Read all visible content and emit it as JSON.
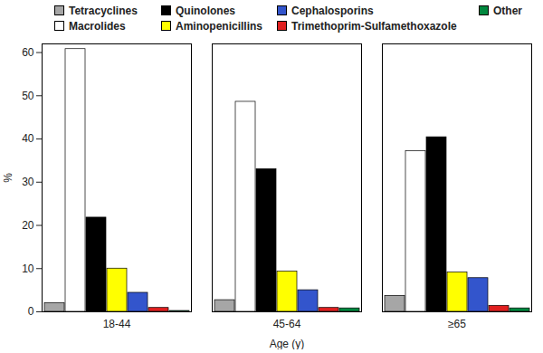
{
  "chart_data": {
    "type": "bar",
    "x_label": "Age (y)",
    "y_label": "%",
    "categories": [
      "18-44",
      "45-64",
      "≥65"
    ],
    "series": [
      {
        "name": "Tetracyclines",
        "color": "#a6a6a6",
        "values": [
          2.0,
          2.7,
          3.7
        ]
      },
      {
        "name": "Macrolides",
        "color": "#ffffff",
        "values": [
          60.8,
          48.6,
          37.2
        ]
      },
      {
        "name": "Quinolones",
        "color": "#000000",
        "values": [
          21.8,
          33.0,
          40.4
        ]
      },
      {
        "name": "Aminopenicillins",
        "color": "#ffff00",
        "values": [
          10.0,
          9.3,
          9.1
        ]
      },
      {
        "name": "Cephalosporins",
        "color": "#3355cc",
        "values": [
          4.4,
          5.0,
          7.8
        ]
      },
      {
        "name": "Trimethoprim-Sulfamethoxazole",
        "color": "#e02020",
        "values": [
          0.9,
          0.9,
          1.4
        ]
      },
      {
        "name": "Other",
        "color": "#00873e",
        "values": [
          0.2,
          0.8,
          0.8
        ]
      }
    ],
    "ylim": [
      0,
      62
    ],
    "yticks": [
      0,
      10,
      20,
      30,
      40,
      50,
      60
    ],
    "legend": "top",
    "grid": false
  }
}
